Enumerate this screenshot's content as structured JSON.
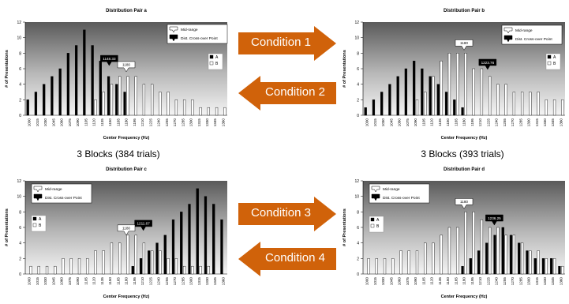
{
  "chart_data": [
    {
      "type": "bar",
      "title": "Distribution Pair a",
      "xlabel": "Center Frequency (Hz)",
      "ylabel": "# of Presentations",
      "ylim": [
        0,
        12
      ],
      "yticks": [
        0,
        2,
        4,
        6,
        8,
        10,
        12
      ],
      "categories": [
        "1000",
        "1015",
        "1030",
        "1045",
        "1060",
        "1075",
        "1090",
        "1105",
        "1120",
        "1135",
        "1150",
        "1165",
        "1180",
        "1195",
        "1210",
        "1225",
        "1240",
        "1255",
        "1270",
        "1285",
        "1300",
        "1315",
        "1330",
        "1345",
        "1360"
      ],
      "series": [
        {
          "name": "A",
          "color": "#000000",
          "values": [
            2,
            3,
            4,
            5,
            6,
            8,
            9,
            11,
            9,
            7,
            5,
            4,
            3,
            0,
            0,
            0,
            0,
            0,
            0,
            0,
            0,
            0,
            0,
            0,
            0
          ]
        },
        {
          "name": "B",
          "color": "#ffffff",
          "values": [
            0,
            0,
            0,
            0,
            0,
            0,
            0,
            0,
            2,
            3,
            4,
            5,
            5,
            5,
            4,
            4,
            3,
            3,
            2,
            2,
            2,
            1,
            1,
            1,
            1
          ]
        }
      ],
      "legend": [
        "A",
        "B"
      ],
      "annotations": {
        "crossover": {
          "label": "1148.33",
          "x_value": 1148.33,
          "y_value": 6.4
        },
        "midrange": {
          "label": "1180",
          "x_value": 1180,
          "y_value": 5.6
        }
      }
    },
    {
      "type": "bar",
      "title": "Distribution Pair b",
      "xlabel": "Center Frequency (Hz)",
      "ylabel": "# of Presentations",
      "ylim": [
        0,
        12
      ],
      "yticks": [
        0,
        2,
        4,
        6,
        8,
        10,
        12
      ],
      "categories": [
        "1000",
        "1015",
        "1030",
        "1045",
        "1060",
        "1075",
        "1090",
        "1105",
        "1120",
        "1135",
        "1150",
        "1165",
        "1180",
        "1195",
        "1210",
        "1225",
        "1240",
        "1255",
        "1270",
        "1285",
        "1300",
        "1315",
        "1330",
        "1345",
        "1360"
      ],
      "series": [
        {
          "name": "A",
          "color": "#000000",
          "values": [
            1,
            2,
            3,
            4,
            5,
            6,
            7,
            6,
            5,
            4,
            3,
            2,
            1,
            0,
            0,
            0,
            0,
            0,
            0,
            0,
            0,
            0,
            0,
            0,
            0
          ]
        },
        {
          "name": "B",
          "color": "#ffffff",
          "values": [
            0,
            0,
            0,
            0,
            0,
            0,
            2,
            3,
            5,
            7,
            8,
            8,
            8,
            6,
            6,
            5,
            4,
            4,
            3,
            3,
            3,
            3,
            2,
            2,
            2
          ]
        }
      ],
      "legend": [
        "A",
        "B"
      ],
      "annotations": {
        "crossover": {
          "label": "1223.76",
          "x_value": 1223.76,
          "y_value": 5.9
        },
        "midrange": {
          "label": "1180",
          "x_value": 1180,
          "y_value": 8.4
        }
      }
    },
    {
      "type": "bar",
      "title": "Distribution Pair c",
      "xlabel": "Center Frequency (Hz)",
      "ylabel": "# of Presentations",
      "ylim": [
        0,
        12
      ],
      "yticks": [
        0,
        2,
        4,
        6,
        8,
        10,
        12
      ],
      "categories": [
        "1000",
        "1015",
        "1030",
        "1045",
        "1060",
        "1075",
        "1090",
        "1105",
        "1120",
        "1135",
        "1150",
        "1165",
        "1180",
        "1195",
        "1210",
        "1225",
        "1240",
        "1255",
        "1270",
        "1285",
        "1300",
        "1315",
        "1330",
        "1345",
        "1360"
      ],
      "series": [
        {
          "name": "A",
          "color": "#000000",
          "values": [
            0,
            0,
            0,
            0,
            0,
            0,
            0,
            0,
            0,
            0,
            0,
            0,
            0,
            1,
            2,
            3,
            4,
            5,
            7,
            8,
            9,
            11,
            10,
            9,
            7
          ]
        },
        {
          "name": "B",
          "color": "#ffffff",
          "values": [
            1,
            1,
            1,
            1,
            2,
            2,
            2,
            2,
            3,
            3,
            4,
            4,
            5,
            5,
            4,
            3,
            3,
            2,
            2,
            1,
            1,
            1,
            1,
            0,
            0
          ]
        }
      ],
      "legend": [
        "A",
        "B"
      ],
      "annotations": {
        "crossover": {
          "label": "1211.67",
          "x_value": 1211.67,
          "y_value": 5.6
        },
        "midrange": {
          "label": "1180",
          "x_value": 1180,
          "y_value": 5.0
        }
      }
    },
    {
      "type": "bar",
      "title": "Distribution Pair d",
      "xlabel": "Center Frequency (Hz)",
      "ylabel": "# of Presentations",
      "ylim": [
        0,
        12
      ],
      "yticks": [
        0,
        2,
        4,
        6,
        8,
        10,
        12
      ],
      "categories": [
        "1000",
        "1015",
        "1030",
        "1045",
        "1060",
        "1075",
        "1090",
        "1105",
        "1120",
        "1135",
        "1150",
        "1165",
        "1180",
        "1195",
        "1210",
        "1225",
        "1240",
        "1255",
        "1270",
        "1285",
        "1300",
        "1315",
        "1330",
        "1345",
        "1360"
      ],
      "series": [
        {
          "name": "A",
          "color": "#000000",
          "values": [
            0,
            0,
            0,
            0,
            0,
            0,
            0,
            0,
            0,
            0,
            0,
            0,
            1,
            2,
            3,
            4,
            5,
            6,
            5,
            4,
            3,
            2,
            2,
            2,
            1
          ]
        },
        {
          "name": "B",
          "color": "#ffffff",
          "values": [
            2,
            2,
            2,
            2,
            3,
            3,
            3,
            4,
            4,
            5,
            6,
            6,
            8,
            8,
            7,
            6,
            6,
            5,
            5,
            4,
            3,
            3,
            2,
            2,
            1
          ]
        }
      ],
      "legend": [
        "A",
        "B"
      ],
      "annotations": {
        "crossover": {
          "label": "1236.25",
          "x_value": 1236.25,
          "y_value": 6.3
        },
        "midrange": {
          "label": "1180",
          "x_value": 1180,
          "y_value": 8.4
        }
      }
    }
  ],
  "legend_items": {
    "midrange": "Mid-range",
    "crossover": "Dist. Cross-over Point"
  },
  "arrows": [
    {
      "label": "Condition 1",
      "direction": "right",
      "color": "#d0620a"
    },
    {
      "label": "Condition 2",
      "direction": "left",
      "color": "#d0620a"
    },
    {
      "label": "Condition 3",
      "direction": "right",
      "color": "#d0620a"
    },
    {
      "label": "Condition 4",
      "direction": "left",
      "color": "#d0620a"
    }
  ],
  "captions": {
    "left": "3 Blocks (384 trials)",
    "right": "3 Blocks (393 trials)"
  }
}
